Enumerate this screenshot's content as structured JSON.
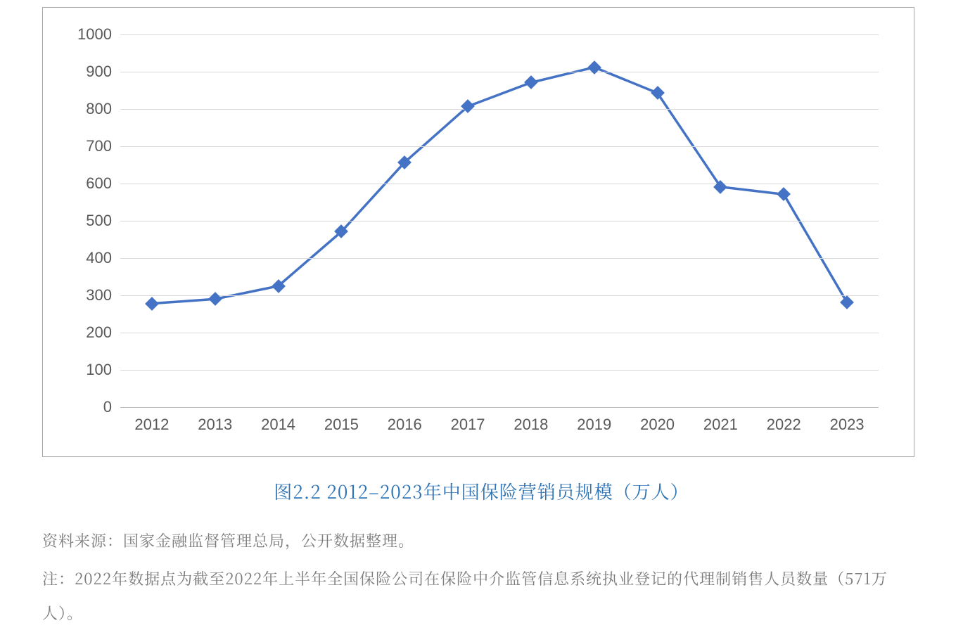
{
  "chart": {
    "type": "line",
    "categories": [
      "2012",
      "2013",
      "2014",
      "2015",
      "2016",
      "2017",
      "2018",
      "2019",
      "2020",
      "2021",
      "2022",
      "2023"
    ],
    "values": [
      278,
      290,
      325,
      471,
      657,
      807,
      871,
      912,
      843,
      591,
      571,
      281
    ],
    "ylim": [
      0,
      1000
    ],
    "ytick_step": 100,
    "yticks": [
      0,
      100,
      200,
      300,
      400,
      500,
      600,
      700,
      800,
      900,
      1000
    ],
    "line_color": "#4472c4",
    "line_width": 3.5,
    "marker_style": "diamond",
    "marker_size": 14,
    "marker_color": "#4472c4",
    "grid_color": "#d9d9d9",
    "baseline_color": "#bfbfbf",
    "frame_border_color": "#a6a6a6",
    "axis_label_color": "#595959",
    "axis_label_fontsize": 22,
    "background_color": "#ffffff"
  },
  "caption": {
    "text": "图2.2 2012–2023年中国保险营销员规模（万人）",
    "color": "#2e74b5",
    "fontsize": 26,
    "font_weight": "normal"
  },
  "source": {
    "label": "资料来源：",
    "text": "国家金融监督管理总局，公开数据整理。",
    "color": "#7b7b7b",
    "fontsize": 22
  },
  "note": {
    "label": "注：",
    "text": "2022年数据点为截至2022年上半年全国保险公司在保险中介监管信息系统执业登记的代理制销售人员数量（571万人）。",
    "color": "#7b7b7b",
    "fontsize": 22
  }
}
